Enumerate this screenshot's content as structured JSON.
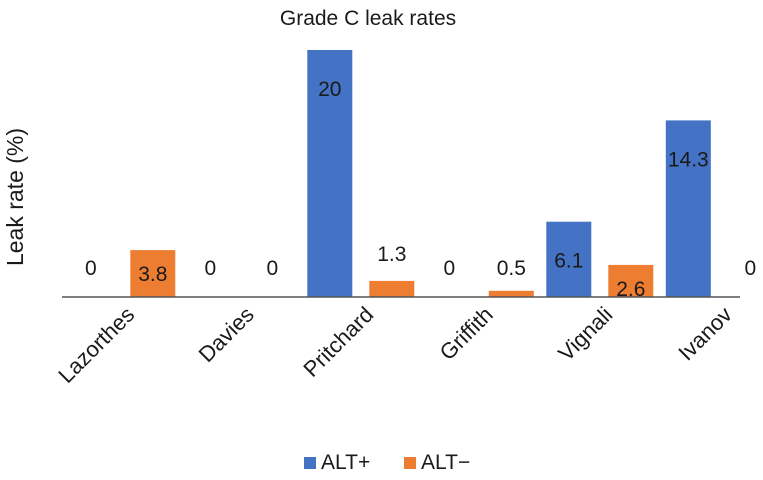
{
  "chart_data": {
    "type": "bar",
    "title": "Grade C leak rates",
    "xlabel": "",
    "ylabel": "Leak rate (%)",
    "ylim": [
      0,
      20
    ],
    "grid": false,
    "legend_position": "bottom",
    "categories": [
      "Lazorthes",
      "Davies",
      "Pritchard",
      "Griffith",
      "Vignali",
      "Ivanov"
    ],
    "series": [
      {
        "name": "ALT+",
        "color": "#4472c4",
        "values": [
          0,
          0,
          20,
          0,
          6.1,
          14.3
        ],
        "labels": [
          "0",
          "0",
          "20",
          "0",
          "6.1",
          "14.3"
        ]
      },
      {
        "name": "ALT−",
        "color": "#ed7d31",
        "values": [
          3.8,
          0,
          1.3,
          0.5,
          2.6,
          0
        ],
        "labels": [
          "3.8",
          "0",
          "1.3",
          "0.5",
          "2.6",
          "0"
        ]
      }
    ]
  }
}
